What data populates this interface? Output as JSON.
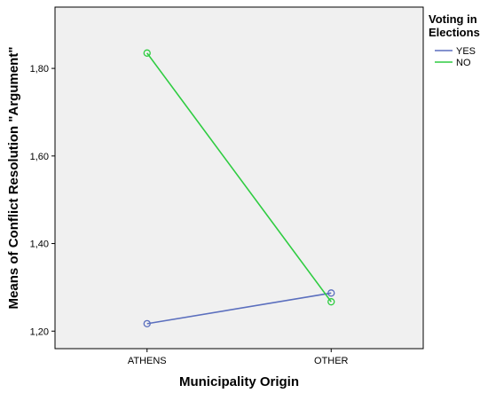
{
  "chart_data": {
    "type": "line",
    "title": "",
    "xlabel": "Municipality Origin",
    "ylabel": "Means of Conflict Resolution \"Argument\"",
    "categories": [
      "ATHENS",
      "OTHER"
    ],
    "ylim": [
      1.16,
      1.94
    ],
    "yticks": [
      1.2,
      1.4,
      1.6,
      1.8
    ],
    "ytick_labels": [
      "1,20",
      "1,40",
      "1,60",
      "1,80"
    ],
    "grid": false,
    "legend": {
      "title_lines": [
        "Voting in",
        "Elections"
      ],
      "position": "right"
    },
    "series": [
      {
        "name": "YES",
        "color": "#5b6fbe",
        "values": [
          1.217,
          1.287
        ]
      },
      {
        "name": "NO",
        "color": "#2ecc40",
        "values": [
          1.835,
          1.267
        ]
      }
    ],
    "background_color": "#f0f0f0"
  }
}
